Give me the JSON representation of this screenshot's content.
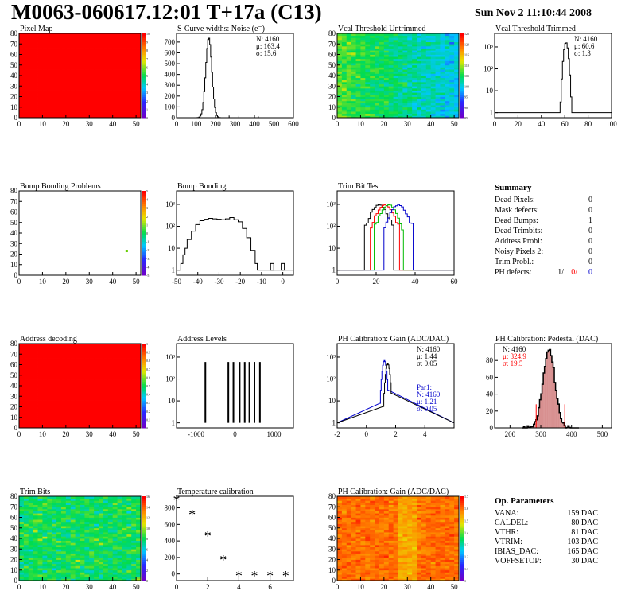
{
  "header": {
    "title": "M0063-060617.12:01 T+17a (C13)",
    "date": "Sun Nov  2 11:10:44 2008"
  },
  "colors": {
    "red": "#ff0000",
    "blue": "#0000cc",
    "green": "#00bb00",
    "black": "#000000",
    "pedestal_fill": "#b22222"
  },
  "chart_data": [
    {
      "id": "pixel-map",
      "type": "heatmap",
      "title": "Pixel Map",
      "xlim": [
        0,
        52
      ],
      "ylim": [
        0,
        80
      ],
      "xticks": [
        "0",
        "10",
        "20",
        "30",
        "40",
        "50"
      ],
      "yticks": [
        "0",
        "10",
        "20",
        "30",
        "40",
        "50",
        "60",
        "70",
        "80"
      ],
      "zticks": [
        "0",
        "1",
        "2",
        "3",
        "4",
        "5",
        "6",
        "7",
        "8",
        "9",
        "10"
      ],
      "fill": "uniform-max"
    },
    {
      "id": "scurve-noise",
      "type": "histogram",
      "title": "S-Curve widths: Noise (e⁻)",
      "xlim": [
        0,
        600
      ],
      "ylim": [
        0,
        780
      ],
      "xticks": [
        "0",
        "100",
        "200",
        "300",
        "400",
        "500",
        "600"
      ],
      "yticks": [
        "0",
        "100",
        "200",
        "300",
        "400",
        "500",
        "600",
        "700"
      ],
      "stats": [
        "N: 4160",
        "μ: 163.4",
        "σ: 15.6"
      ],
      "peak": {
        "mean": 163.4,
        "sigma": 15.6,
        "height": 740
      },
      "outliers": [
        [
          270,
          5
        ],
        [
          320,
          4
        ],
        [
          420,
          3
        ]
      ]
    },
    {
      "id": "vcal-untrimmed",
      "type": "heatmap",
      "title": "Vcal Threshold Untrimmed",
      "xlim": [
        0,
        52
      ],
      "ylim": [
        0,
        80
      ],
      "xticks": [
        "0",
        "10",
        "20",
        "30",
        "40",
        "50"
      ],
      "yticks": [
        "0",
        "10",
        "20",
        "30",
        "40",
        "50",
        "60",
        "70",
        "80"
      ],
      "zticks": [
        "85",
        "90",
        "95",
        "100",
        "105",
        "110",
        "115",
        "120",
        "125"
      ],
      "fill": "noise-blue-green"
    },
    {
      "id": "vcal-trimmed",
      "type": "histogram",
      "title": "Vcal Threshold Trimmed",
      "xlim": [
        0,
        100
      ],
      "log_y": true,
      "xticks": [
        "0",
        "20",
        "40",
        "60",
        "80",
        "100"
      ],
      "yticks": [
        "1",
        "10",
        "10²",
        "10³"
      ],
      "stats": [
        "N: 4160",
        "μ: 60.6",
        "σ:   1.3"
      ],
      "peak": {
        "mean": 60.6,
        "sigma": 1.3,
        "height": 1600
      }
    },
    {
      "id": "bump-problems",
      "type": "heatmap",
      "title": "Bump Bonding Problems",
      "xlim": [
        0,
        52
      ],
      "ylim": [
        0,
        80
      ],
      "xticks": [
        "0",
        "10",
        "20",
        "30",
        "40",
        "50"
      ],
      "yticks": [
        "0",
        "10",
        "20",
        "30",
        "40",
        "50",
        "60",
        "70",
        "80"
      ],
      "zticks": [
        "-5",
        "-4",
        "-3",
        "-2",
        "-1",
        "0",
        "1",
        "2",
        "3",
        "4",
        "5"
      ],
      "points": [
        [
          46,
          23
        ]
      ]
    },
    {
      "id": "bump-bonding",
      "type": "histogram",
      "title": "Bump Bonding",
      "xlim": [
        -50,
        5
      ],
      "log_y": true,
      "xticks": [
        "-50",
        "-40",
        "-30",
        "-20",
        "-10",
        "0"
      ],
      "yticks": [
        "1",
        "10",
        "10²",
        "10³"
      ]
    },
    {
      "id": "trim-bit-test",
      "type": "histogram",
      "title": "Trim Bit Test",
      "xlim": [
        0,
        60
      ],
      "log_y": true,
      "xticks": [
        "0",
        "20",
        "40",
        "60"
      ],
      "yticks": [
        "1",
        "10",
        "10²",
        "10³"
      ],
      "series": [
        {
          "color": "black",
          "mean": 21
        },
        {
          "color": "red",
          "mean": 24
        },
        {
          "color": "green",
          "mean": 26
        },
        {
          "color": "blue",
          "mean": 31
        }
      ]
    },
    {
      "id": "address-decoding",
      "type": "heatmap",
      "title": "Address decoding",
      "xlim": [
        0,
        52
      ],
      "ylim": [
        0,
        80
      ],
      "xticks": [
        "0",
        "10",
        "20",
        "30",
        "40",
        "50"
      ],
      "yticks": [
        "0",
        "10",
        "20",
        "30",
        "40",
        "50",
        "60",
        "70",
        "80"
      ],
      "zticks": [
        "0",
        "0.1",
        "0.2",
        "0.3",
        "0.4",
        "0.5",
        "0.6",
        "0.7",
        "0.8",
        "0.9",
        "1"
      ],
      "fill": "uniform-max"
    },
    {
      "id": "address-levels",
      "type": "histogram",
      "title": "Address Levels",
      "xlim": [
        -1500,
        1500
      ],
      "log_y": true,
      "xticks": [
        "-1000",
        "0",
        "1000"
      ],
      "yticks": [
        "1",
        "10",
        "10²",
        "10³"
      ],
      "spikes": [
        -760,
        -170,
        -40,
        120,
        250,
        370,
        500,
        640
      ]
    },
    {
      "id": "ph-gain-hist",
      "type": "histogram",
      "title": "PH Calibration: Gain (ADC/DAC)",
      "xlim": [
        -2,
        6
      ],
      "log_y": true,
      "xticks": [
        "-2",
        "0",
        "2",
        "4"
      ],
      "yticks": [
        "1",
        "10",
        "10²",
        "10³"
      ],
      "stats": [
        "N: 4160",
        "μ: 1.44",
        "σ: 0.05"
      ],
      "fit_stats": [
        "Par1:",
        "N: 4160",
        "μ: 1.21",
        "σ: 0.05"
      ]
    },
    {
      "id": "ph-pedestal",
      "type": "histogram",
      "title": "PH Calibration: Pedestal (DAC)",
      "xlim": [
        150,
        530
      ],
      "ylim": [
        0,
        100
      ],
      "xticks": [
        "200",
        "300",
        "400",
        "500"
      ],
      "yticks": [
        "0",
        "20",
        "40",
        "60",
        "80"
      ],
      "stats": [
        "N: 4160",
        "μ: 324.9",
        "σ: 19.5"
      ],
      "peak": {
        "mean": 324.9,
        "sigma": 19.5,
        "height": 92
      },
      "cut_lines": [
        285,
        378
      ]
    },
    {
      "id": "trim-bits",
      "type": "heatmap",
      "title": "Trim Bits",
      "xlim": [
        0,
        52
      ],
      "ylim": [
        0,
        80
      ],
      "xticks": [
        "0",
        "10",
        "20",
        "30",
        "40",
        "50"
      ],
      "yticks": [
        "0",
        "10",
        "20",
        "30",
        "40",
        "50",
        "60",
        "70",
        "80"
      ],
      "zticks": [
        "0",
        "2",
        "4",
        "6",
        "8",
        "10",
        "12",
        "14",
        "16"
      ],
      "fill": "noise-green"
    },
    {
      "id": "temperature-calibration",
      "type": "scatter",
      "title": "Temperature calibration",
      "xlim": [
        0,
        7.5
      ],
      "ylim": [
        -80,
        940
      ],
      "xticks": [
        "0",
        "2",
        "4",
        "6"
      ],
      "yticks": [
        "0",
        "200",
        "400",
        "600",
        "800"
      ],
      "x": [
        0,
        1,
        2,
        3,
        4,
        5,
        6,
        7
      ],
      "y": [
        890,
        720,
        460,
        170,
        -20,
        -20,
        -20,
        -20
      ]
    },
    {
      "id": "ph-gain-map",
      "type": "heatmap",
      "title": "PH Calibration: Gain (ADC/DAC)",
      "xlim": [
        0,
        52
      ],
      "ylim": [
        0,
        80
      ],
      "xticks": [
        "0",
        "10",
        "20",
        "30",
        "40",
        "50"
      ],
      "yticks": [
        "0",
        "10",
        "20",
        "30",
        "40",
        "50",
        "60",
        "70",
        "80"
      ],
      "zticks": [
        "1",
        "1.1",
        "1.2",
        "1.3",
        "1.4",
        "1.5",
        "1.6",
        "1.7"
      ],
      "fill": "noise-orange"
    }
  ],
  "summary": {
    "title": "Summary",
    "rows": [
      {
        "label": "Dead Pixels:",
        "value": "0"
      },
      {
        "label": "Mask defects:",
        "value": "0"
      },
      {
        "label": "Dead Bumps:",
        "value": "1"
      },
      {
        "label": "Dead Trimbits:",
        "value": "0"
      },
      {
        "label": "Address Probl:",
        "value": "0"
      },
      {
        "label": "Noisy Pixels 2:",
        "value": "0"
      },
      {
        "label": "Trim Probl.:",
        "value": "0"
      }
    ],
    "ph_defects": {
      "label": "PH defects:",
      "v1": "1/",
      "v2": "0/",
      "v3": "0"
    }
  },
  "op_params": {
    "title": "Op. Parameters",
    "rows": [
      {
        "label": "VANA:",
        "value": "159 DAC"
      },
      {
        "label": "CALDEL:",
        "value": "80 DAC"
      },
      {
        "label": "VTHR:",
        "value": "81 DAC"
      },
      {
        "label": "VTRIM:",
        "value": "103 DAC"
      },
      {
        "label": "IBIAS_DAC:",
        "value": "165 DAC"
      },
      {
        "label": "VOFFSETOP:",
        "value": "30 DAC"
      }
    ]
  }
}
